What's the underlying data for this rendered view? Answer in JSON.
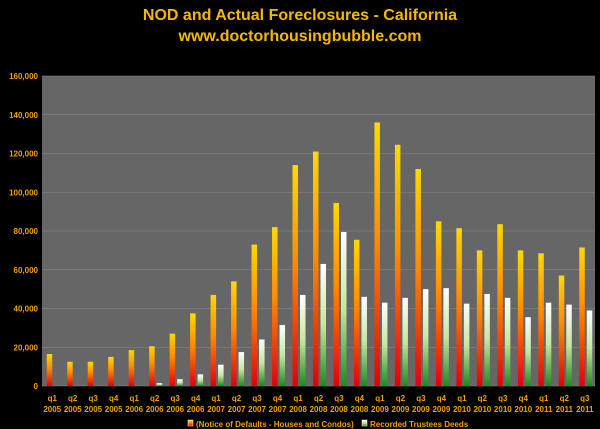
{
  "chart_data": {
    "type": "bar",
    "title": "NOD and Actual Foreclosures - California",
    "subtitle": "www.doctorhousingbubble.com",
    "ylim": [
      0,
      160000
    ],
    "yticks": [
      "0",
      "20,000",
      "40,000",
      "60,000",
      "80,000",
      "100,000",
      "120,000",
      "140,000",
      "160,000"
    ],
    "categories": [
      [
        "q1",
        "2005"
      ],
      [
        "q2",
        "2005"
      ],
      [
        "q3",
        "2005"
      ],
      [
        "q4",
        "2005"
      ],
      [
        "q1",
        "2006"
      ],
      [
        "q2",
        "2006"
      ],
      [
        "q3",
        "2006"
      ],
      [
        "q4",
        "2006"
      ],
      [
        "q1",
        "2007"
      ],
      [
        "q2",
        "2007"
      ],
      [
        "q3",
        "2007"
      ],
      [
        "q4",
        "2007"
      ],
      [
        "q1",
        "2008"
      ],
      [
        "q2",
        "2008"
      ],
      [
        "q3",
        "2008"
      ],
      [
        "q4",
        "2008"
      ],
      [
        "q1",
        "2009"
      ],
      [
        "q2",
        "2009"
      ],
      [
        "q3",
        "2009"
      ],
      [
        "q4",
        "2009"
      ],
      [
        "q1",
        "2010"
      ],
      [
        "q2",
        "2010"
      ],
      [
        "q3",
        "2010"
      ],
      [
        "q4",
        "2010"
      ],
      [
        "q1",
        "2011"
      ],
      [
        "q2",
        "2011"
      ],
      [
        "q3",
        "2011"
      ]
    ],
    "grid": true,
    "legend_position": "bottom",
    "series": [
      {
        "name": "(Notice of Defaults - Houses and Condos)",
        "values": [
          16500,
          12500,
          12500,
          15000,
          18500,
          20500,
          27000,
          37500,
          47000,
          54000,
          73000,
          82000,
          114000,
          121000,
          94500,
          75500,
          136000,
          124500,
          112000,
          85000,
          81500,
          70000,
          83500,
          70000,
          68500,
          57000,
          71500
        ],
        "color_top": "#ffd900",
        "color_mid": "#ff7a00",
        "color_bottom": "#e00010"
      },
      {
        "name": "Recorded Trustees Deeds",
        "values": [
          0,
          0,
          0,
          0,
          0,
          1500,
          3500,
          6000,
          11000,
          17500,
          24000,
          31500,
          47000,
          63000,
          79500,
          46000,
          43000,
          45500,
          50000,
          50500,
          42500,
          47500,
          45500,
          35500,
          43000,
          42000,
          39000
        ],
        "color_top": "#ffffff",
        "color_mid": "#c8e6a0",
        "color_bottom": "#1e8a1e"
      }
    ]
  },
  "colors": {
    "plot_background": "#666666",
    "page_background": "#000000",
    "text": "#f0a000",
    "title": "#f5b800"
  }
}
